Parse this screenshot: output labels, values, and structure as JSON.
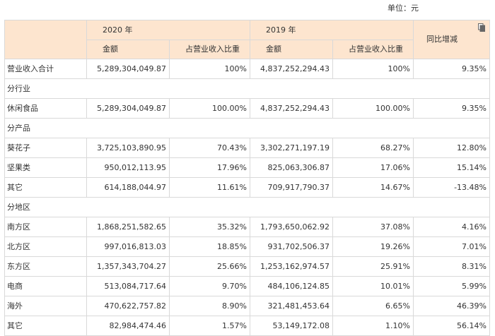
{
  "unit_label": "单位：元",
  "header": {
    "year_2020": "2020 年",
    "year_2019": "2019 年",
    "amount": "金额",
    "ratio": "占营业收入比重",
    "yoy": "同比增减"
  },
  "rows": [
    {
      "type": "data",
      "label": "营业收入合计",
      "a2020": "5,289,304,049.87",
      "r2020": "100%",
      "a2019": "4,837,252,294.43",
      "r2019": "100%",
      "yoy": "9.35%"
    },
    {
      "type": "section",
      "label": "分行业"
    },
    {
      "type": "data",
      "label": "休闲食品",
      "a2020": "5,289,304,049.87",
      "r2020": "100.00%",
      "a2019": "4,837,252,294.43",
      "r2019": "100.00%",
      "yoy": "9.35%"
    },
    {
      "type": "section",
      "label": "分产品"
    },
    {
      "type": "data",
      "label": "葵花子",
      "a2020": "3,725,103,890.95",
      "r2020": "70.43%",
      "a2019": "3,302,271,197.19",
      "r2019": "68.27%",
      "yoy": "12.80%"
    },
    {
      "type": "data",
      "label": "坚果类",
      "a2020": "950,012,113.95",
      "r2020": "17.96%",
      "a2019": "825,063,306.87",
      "r2019": "17.06%",
      "yoy": "15.14%"
    },
    {
      "type": "data",
      "label": "其它",
      "a2020": "614,188,044.97",
      "r2020": "11.61%",
      "a2019": "709,917,790.37",
      "r2019": "14.67%",
      "yoy": "-13.48%"
    },
    {
      "type": "section",
      "label": "分地区"
    },
    {
      "type": "data",
      "label": "南方区",
      "a2020": "1,868,251,582.65",
      "r2020": "35.32%",
      "a2019": "1,793,650,062.92",
      "r2019": "37.08%",
      "yoy": "4.16%"
    },
    {
      "type": "data",
      "label": "北方区",
      "a2020": "997,016,813.03",
      "r2020": "18.85%",
      "a2019": "931,702,506.37",
      "r2019": "19.26%",
      "yoy": "7.01%"
    },
    {
      "type": "data",
      "label": "东方区",
      "a2020": "1,357,343,704.27",
      "r2020": "25.66%",
      "a2019": "1,253,162,974.57",
      "r2019": "25.91%",
      "yoy": "8.31%"
    },
    {
      "type": "data",
      "label": "电商",
      "a2020": "513,084,717.64",
      "r2020": "9.70%",
      "a2019": "484,106,124.85",
      "r2019": "10.01%",
      "yoy": "5.99%"
    },
    {
      "type": "data",
      "label": "海外",
      "a2020": "470,622,757.82",
      "r2020": "8.90%",
      "a2019": "321,481,453.64",
      "r2019": "6.65%",
      "yoy": "46.39%"
    },
    {
      "type": "data",
      "label": "其它",
      "a2020": "82,984,474.46",
      "r2020": "1.57%",
      "a2019": "53,149,172.08",
      "r2019": "1.10%",
      "yoy": "56.14%"
    }
  ],
  "icons": {
    "copy": "copy-icon"
  },
  "colors": {
    "header_bg": "#fde5cf",
    "border": "#d9d9d9",
    "text": "#333333"
  }
}
